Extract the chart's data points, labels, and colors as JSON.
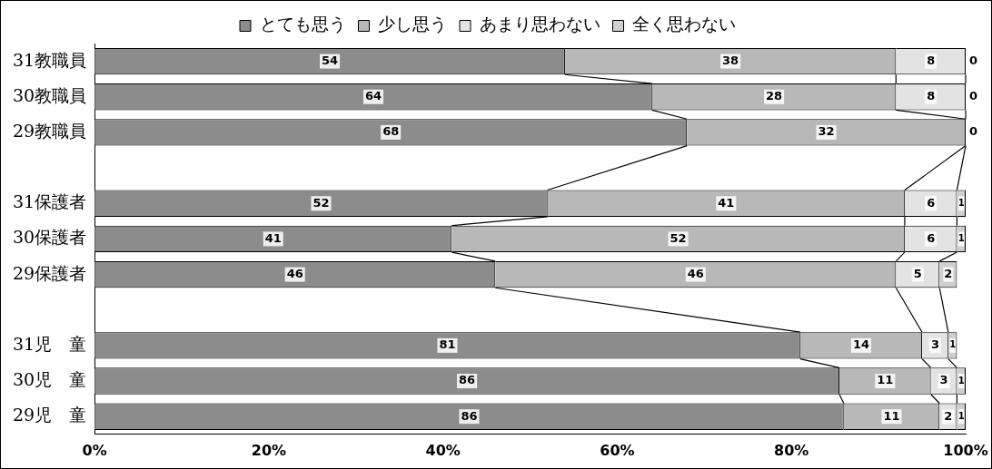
{
  "chart_data": {
    "type": "bar",
    "orientation": "horizontal",
    "stacked": true,
    "legend": "top",
    "categories": [
      "31教職員",
      "30教職員",
      "29教職員",
      null,
      "31保護者",
      "30保護者",
      "29保護者",
      null,
      "31児　童",
      "30児　童",
      "29児　童"
    ],
    "series": [
      {
        "name": "とても思う",
        "color": "#8c8c8c",
        "values": [
          54,
          64,
          68,
          null,
          52,
          41,
          46,
          null,
          81,
          85.5,
          86
        ],
        "value_labels": [
          "54",
          "64",
          "68",
          null,
          "52",
          "41",
          "46",
          null,
          "81",
          "86",
          "86"
        ]
      },
      {
        "name": "少し思う",
        "color": "#b8b8b8",
        "values": [
          38,
          28,
          32,
          null,
          41,
          52,
          46,
          null,
          14,
          10.5,
          11
        ],
        "value_labels": [
          "38",
          "28",
          "32",
          null,
          "41",
          "52",
          "46",
          null,
          "14",
          "11",
          "11"
        ]
      },
      {
        "name": "あまり思わない",
        "color": "#e3e3e3",
        "values": [
          8,
          8,
          0,
          null,
          6,
          6,
          5,
          null,
          3,
          3,
          2
        ],
        "value_labels": [
          "8",
          "8",
          null,
          null,
          "6",
          "6",
          "5",
          null,
          "3",
          "3",
          "2"
        ]
      },
      {
        "name": "全く思わない",
        "color": "#cfcfcf",
        "values": [
          0,
          0,
          0,
          null,
          1,
          1,
          2,
          null,
          1,
          1,
          1
        ],
        "value_labels": [
          "0",
          "0",
          "0",
          null,
          "1",
          "1",
          "2",
          null,
          "1",
          "1",
          "1"
        ]
      }
    ],
    "xlim": [
      0,
      100
    ],
    "xticks": [
      {
        "value": 0,
        "label": "0%"
      },
      {
        "value": 20,
        "label": "20%"
      },
      {
        "value": 40,
        "label": "40%"
      },
      {
        "value": 60,
        "label": "60%"
      },
      {
        "value": 80,
        "label": "80%"
      },
      {
        "value": 100,
        "label": "100%"
      }
    ]
  }
}
